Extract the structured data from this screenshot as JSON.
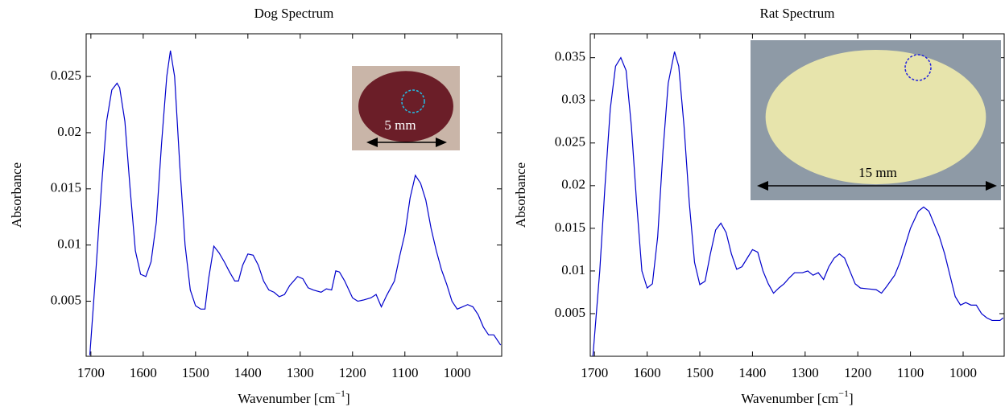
{
  "chart_data": [
    {
      "type": "line",
      "title": "Dog Spectrum",
      "x_label": "Wavenumber [cm",
      "x_label_sup": "−1",
      "x_label_end": "]",
      "y_label": "Absorbance",
      "color": "#0000cc",
      "inset_label": "5 mm",
      "xlim": [
        1709,
        915
      ],
      "ylim": [
        0.0001,
        0.0288
      ],
      "xticks": [
        1700,
        1600,
        1500,
        1400,
        1300,
        1200,
        1100,
        1000
      ],
      "yticks": [
        0.005,
        0.01,
        0.015,
        0.02,
        0.025
      ],
      "x": [
        1702,
        1690,
        1680,
        1670,
        1660,
        1650,
        1645,
        1635,
        1625,
        1615,
        1605,
        1595,
        1585,
        1575,
        1565,
        1555,
        1548,
        1540,
        1530,
        1520,
        1510,
        1500,
        1490,
        1482,
        1475,
        1465,
        1455,
        1445,
        1435,
        1425,
        1418,
        1410,
        1400,
        1390,
        1380,
        1370,
        1360,
        1350,
        1340,
        1330,
        1320,
        1305,
        1295,
        1285,
        1275,
        1260,
        1250,
        1240,
        1232,
        1225,
        1215,
        1200,
        1190,
        1180,
        1165,
        1155,
        1145,
        1135,
        1120,
        1110,
        1100,
        1090,
        1080,
        1070,
        1060,
        1050,
        1040,
        1030,
        1020,
        1010,
        1000,
        990,
        980,
        970,
        960,
        950,
        940,
        930,
        917
      ],
      "values": [
        0.0002,
        0.008,
        0.015,
        0.021,
        0.0238,
        0.0244,
        0.024,
        0.021,
        0.015,
        0.0095,
        0.0074,
        0.0072,
        0.0085,
        0.012,
        0.019,
        0.025,
        0.0273,
        0.025,
        0.017,
        0.01,
        0.006,
        0.0046,
        0.0043,
        0.0043,
        0.007,
        0.0099,
        0.0093,
        0.0085,
        0.0076,
        0.0068,
        0.0068,
        0.0082,
        0.0092,
        0.0091,
        0.0082,
        0.0068,
        0.006,
        0.0058,
        0.0054,
        0.0056,
        0.0064,
        0.0072,
        0.007,
        0.0062,
        0.006,
        0.0058,
        0.0061,
        0.006,
        0.0077,
        0.0076,
        0.0068,
        0.0053,
        0.005,
        0.0051,
        0.0053,
        0.0056,
        0.0045,
        0.0055,
        0.0068,
        0.009,
        0.011,
        0.0142,
        0.0162,
        0.0155,
        0.014,
        0.0115,
        0.0095,
        0.0078,
        0.0065,
        0.005,
        0.0043,
        0.0045,
        0.0047,
        0.0045,
        0.0038,
        0.0027,
        0.002,
        0.002,
        0.0011
      ]
    },
    {
      "type": "line",
      "title": "Rat Spectrum",
      "x_label": "Wavenumber [cm",
      "x_label_sup": "−1",
      "x_label_end": "]",
      "y_label": "Absorbance",
      "color": "#0000cc",
      "inset_label": "15 mm",
      "xlim": [
        1708,
        922
      ],
      "ylim": [
        0,
        0.0378
      ],
      "xticks": [
        1700,
        1600,
        1500,
        1400,
        1300,
        1200,
        1100,
        1000
      ],
      "yticks": [
        0.005,
        0.01,
        0.015,
        0.02,
        0.025,
        0.03,
        0.035
      ],
      "x": [
        1703,
        1690,
        1680,
        1670,
        1660,
        1650,
        1640,
        1630,
        1620,
        1610,
        1600,
        1590,
        1580,
        1570,
        1560,
        1548,
        1540,
        1530,
        1520,
        1510,
        1500,
        1490,
        1480,
        1470,
        1460,
        1450,
        1440,
        1430,
        1420,
        1410,
        1400,
        1390,
        1380,
        1370,
        1360,
        1350,
        1340,
        1330,
        1320,
        1305,
        1295,
        1285,
        1275,
        1265,
        1255,
        1245,
        1235,
        1225,
        1215,
        1205,
        1195,
        1180,
        1165,
        1155,
        1145,
        1130,
        1120,
        1110,
        1100,
        1085,
        1075,
        1065,
        1055,
        1045,
        1035,
        1025,
        1015,
        1005,
        995,
        985,
        975,
        965,
        955,
        945,
        930,
        924
      ],
      "values": [
        0,
        0.01,
        0.02,
        0.029,
        0.034,
        0.035,
        0.0335,
        0.027,
        0.018,
        0.01,
        0.008,
        0.0085,
        0.014,
        0.024,
        0.032,
        0.0357,
        0.034,
        0.027,
        0.018,
        0.011,
        0.0084,
        0.0088,
        0.012,
        0.0148,
        0.0156,
        0.0145,
        0.012,
        0.0102,
        0.0105,
        0.0115,
        0.0125,
        0.0122,
        0.01,
        0.0085,
        0.0074,
        0.008,
        0.0085,
        0.0092,
        0.0098,
        0.0098,
        0.01,
        0.0095,
        0.0098,
        0.009,
        0.0105,
        0.0115,
        0.012,
        0.0115,
        0.01,
        0.0085,
        0.008,
        0.0079,
        0.0078,
        0.0074,
        0.0082,
        0.0095,
        0.011,
        0.013,
        0.015,
        0.017,
        0.0175,
        0.017,
        0.0155,
        0.014,
        0.012,
        0.0095,
        0.007,
        0.006,
        0.0063,
        0.006,
        0.006,
        0.005,
        0.0045,
        0.0042,
        0.0042,
        0.0045
      ]
    }
  ]
}
